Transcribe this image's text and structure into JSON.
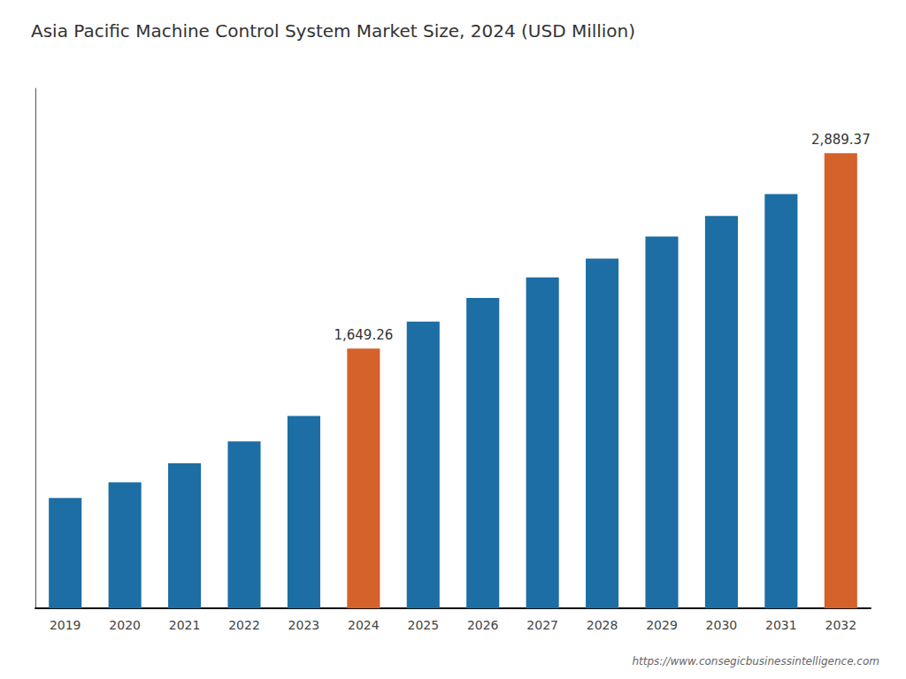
{
  "chart_data": {
    "type": "bar",
    "title": "Asia Pacific Machine Control System Market Size, 2024 (USD Million)",
    "categories": [
      "2019",
      "2020",
      "2021",
      "2022",
      "2023",
      "2024",
      "2025",
      "2026",
      "2027",
      "2028",
      "2029",
      "2030",
      "2031",
      "2032"
    ],
    "values": [
      700,
      800,
      920,
      1060,
      1220,
      1649.26,
      1820,
      1970,
      2100,
      2220,
      2360,
      2490,
      2630,
      2889.37
    ],
    "colors": [
      "#1c6ea4",
      "#1c6ea4",
      "#1c6ea4",
      "#1c6ea4",
      "#1c6ea4",
      "#d4622a",
      "#1c6ea4",
      "#1c6ea4",
      "#1c6ea4",
      "#1c6ea4",
      "#1c6ea4",
      "#1c6ea4",
      "#1c6ea4",
      "#d4622a"
    ],
    "ylim": [
      0,
      3300
    ],
    "grid": false,
    "tick_labels": "x",
    "annotations": [
      {
        "x": "2024",
        "y": 1649.26,
        "text": "1,649.26"
      },
      {
        "x": "2032",
        "y": 2889.37,
        "text": "2,889.37"
      },
      {
        "text": "https://www.consegicbusinessintelligence.com"
      }
    ]
  }
}
